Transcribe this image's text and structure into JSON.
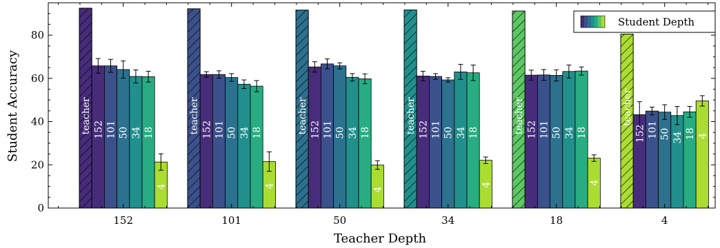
{
  "chart_data": {
    "type": "bar",
    "xlabel": "Teacher Depth",
    "ylabel": "Student Accuracy",
    "ylim": [
      0,
      95
    ],
    "yticks": [
      0,
      20,
      40,
      60,
      80
    ],
    "grid": false,
    "legend": {
      "label": "Student Depth",
      "placement": "top-right"
    },
    "categories": [
      "152",
      "101",
      "50",
      "34",
      "18",
      "4"
    ],
    "teacher": {
      "label": "teacher",
      "hatched": true,
      "values": [
        92.5,
        92.2,
        91.6,
        91.7,
        91.2,
        80.5
      ]
    },
    "student_depths": [
      "152",
      "101",
      "50",
      "34",
      "18",
      "4"
    ],
    "student_colors": [
      "#472c7a",
      "#3b518b",
      "#2c718e",
      "#21908d",
      "#27ad81",
      "#5cc863",
      "#aadc32"
    ],
    "teacher_colors": [
      "#472c7a",
      "#3b518b",
      "#2c718e",
      "#21908d",
      "#5cc863",
      "#aadc32"
    ],
    "student_values": [
      [
        65.8,
        65.8,
        64.1,
        60.9,
        60.8,
        21.3
      ],
      [
        61.8,
        61.8,
        60.4,
        57.3,
        56.4,
        21.5
      ],
      [
        65.3,
        66.7,
        65.8,
        60.5,
        59.8,
        19.9
      ],
      [
        61.1,
        60.9,
        59.3,
        63.0,
        62.6,
        22.1
      ],
      [
        61.5,
        61.6,
        61.4,
        63.2,
        63.4,
        23.1
      ],
      [
        43.2,
        44.9,
        44.4,
        42.8,
        44.5,
        49.6
      ]
    ],
    "student_errors": [
      [
        3.4,
        3.0,
        4.0,
        3.0,
        2.5,
        3.8
      ],
      [
        1.3,
        1.7,
        1.8,
        2.0,
        2.6,
        4.5
      ],
      [
        2.4,
        2.3,
        1.4,
        1.7,
        2.3,
        2.0
      ],
      [
        2.2,
        1.3,
        1.0,
        3.5,
        3.6,
        1.5
      ],
      [
        2.3,
        2.5,
        2.6,
        3.0,
        1.9,
        1.5
      ],
      [
        6.0,
        1.8,
        3.4,
        4.2,
        2.5,
        2.4
      ]
    ]
  }
}
